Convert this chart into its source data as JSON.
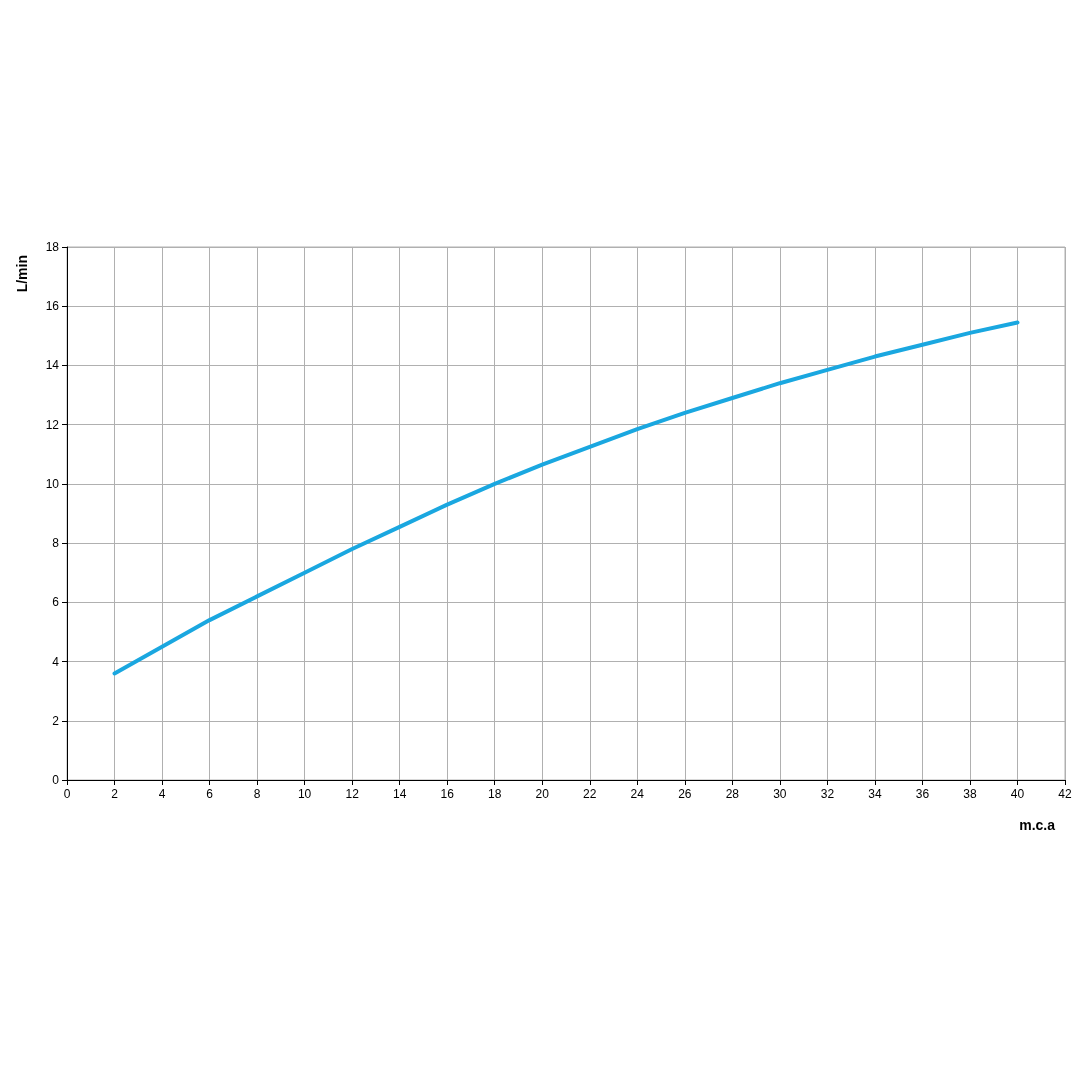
{
  "chart_data": {
    "type": "line",
    "xlabel": "m.c.a",
    "ylabel": "L/min",
    "x": [
      2,
      4,
      6,
      8,
      10,
      12,
      14,
      16,
      18,
      20,
      22,
      24,
      26,
      28,
      30,
      32,
      34,
      36,
      38,
      40
    ],
    "series": [
      {
        "color": "#1aa7e0",
        "values": [
          3.6,
          4.5,
          5.4,
          6.2,
          7.0,
          7.8,
          8.55,
          9.3,
          10.0,
          10.65,
          11.25,
          11.85,
          12.4,
          12.9,
          13.4,
          13.85,
          14.3,
          14.7,
          15.1,
          15.45
        ]
      }
    ],
    "xlim": [
      0,
      42
    ],
    "xticks": [
      0,
      2,
      4,
      6,
      8,
      10,
      12,
      14,
      16,
      18,
      20,
      22,
      24,
      26,
      28,
      30,
      32,
      34,
      36,
      38,
      40,
      42
    ],
    "ylim": [
      0,
      18
    ],
    "yticks": [
      0,
      2,
      4,
      6,
      8,
      10,
      12,
      14,
      16,
      18
    ],
    "grid": true,
    "marker": "none",
    "line_style": "solid"
  }
}
